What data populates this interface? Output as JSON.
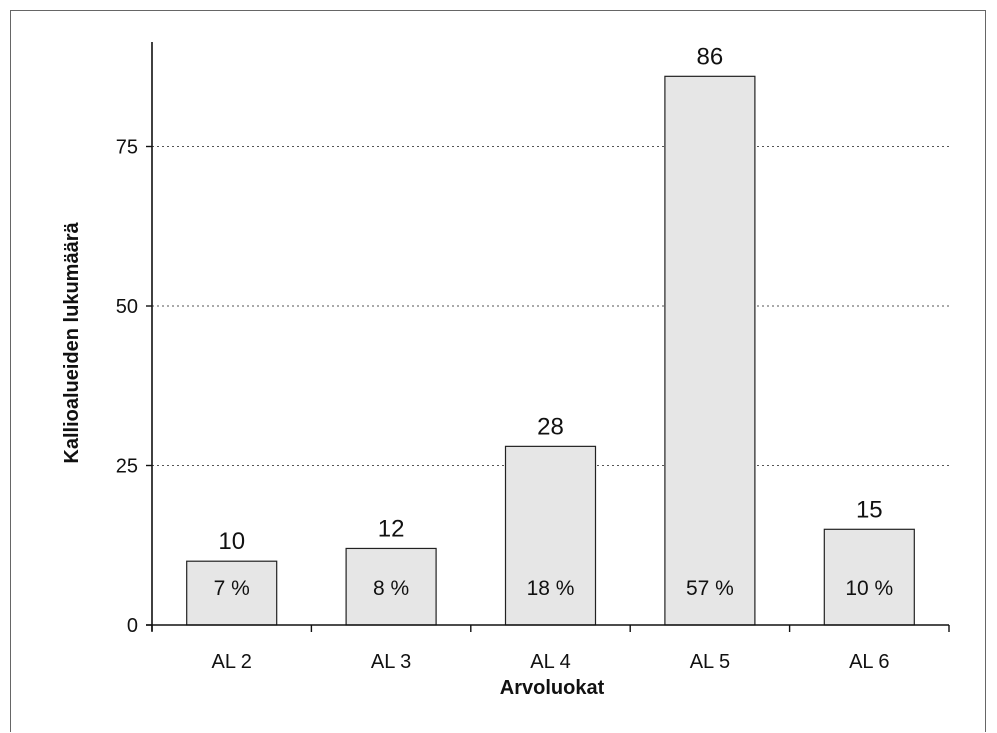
{
  "chart_data": {
    "type": "bar",
    "categories": [
      "AL 2",
      "AL 3",
      "AL 4",
      "AL 5",
      "AL 6"
    ],
    "values": [
      10,
      12,
      28,
      86,
      15
    ],
    "percent_labels": [
      "7 %",
      "8 %",
      "18 %",
      "57 %",
      "10 %"
    ],
    "value_labels": [
      "10",
      "12",
      "28",
      "86",
      "15"
    ],
    "yticks": [
      0,
      25,
      50,
      75
    ],
    "ytick_labels": [
      "0",
      "25",
      "50",
      "75"
    ],
    "ylim": [
      0,
      90
    ],
    "xlabel": "Arvoluokat",
    "ylabel": "Kallioalueiden lukumäärä",
    "title": "",
    "grid": "horizontal dotted",
    "legend": "none",
    "colors": {
      "bar_fill": "#e6e6e6",
      "bar_stroke": "#222222",
      "grid": "#555555",
      "axis": "#111111"
    }
  }
}
